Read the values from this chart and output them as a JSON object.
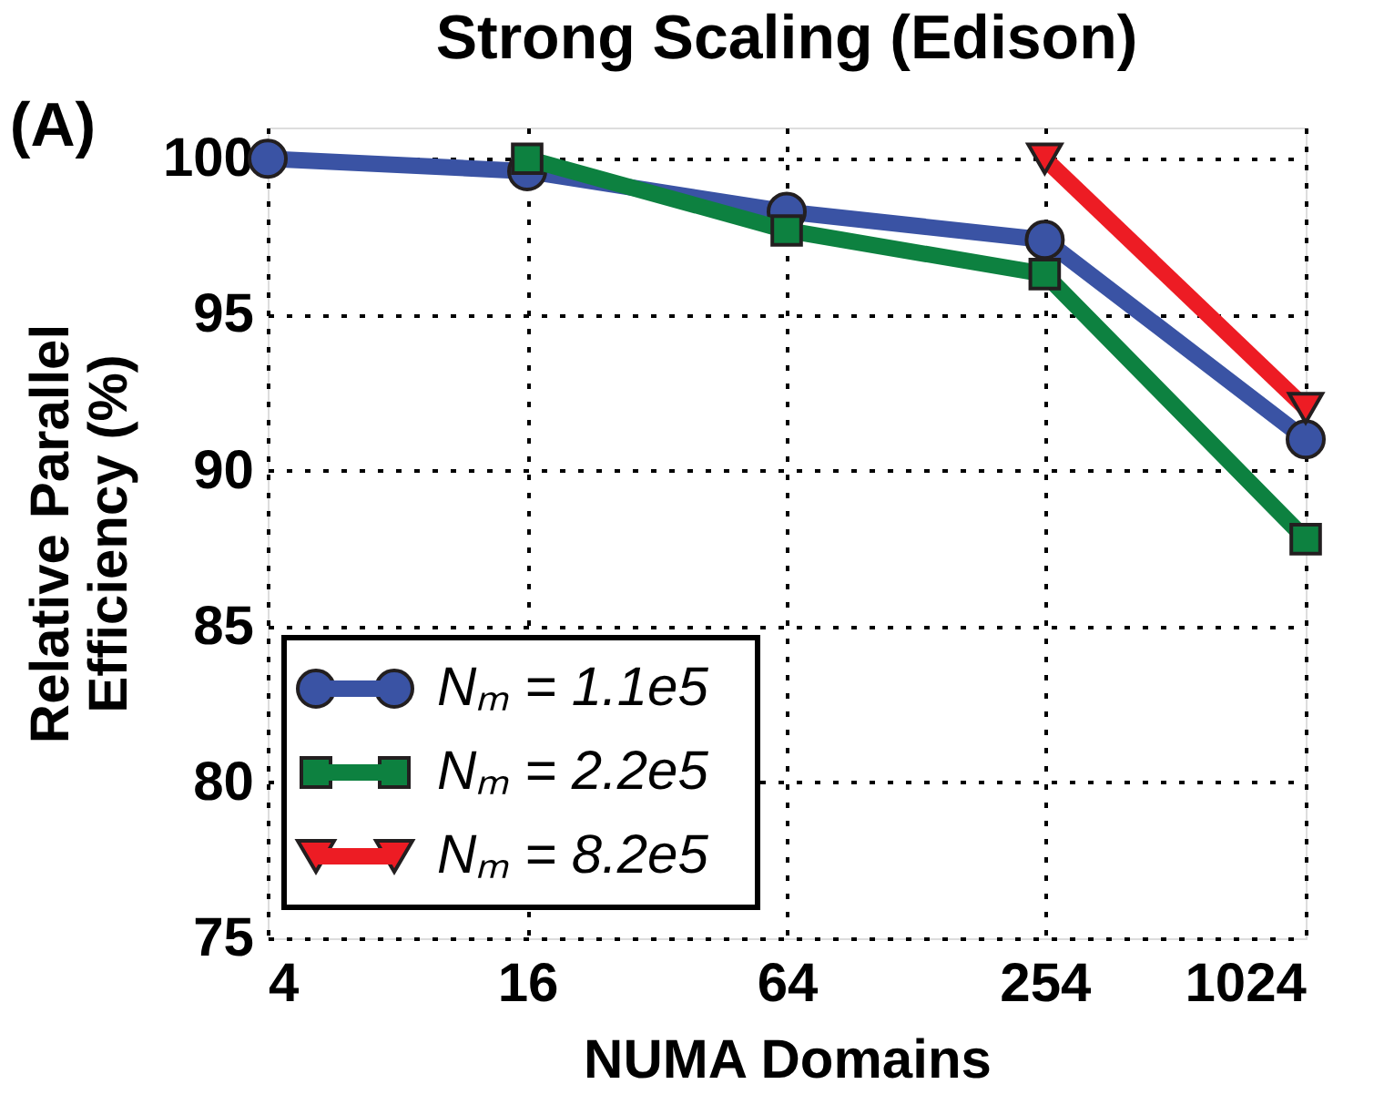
{
  "chart_data": {
    "type": "line",
    "title": "Strong Scaling (Edison)",
    "xlabel": "NUMA Domains",
    "ylabel": "Relative Parallel\nEfficiency (%)",
    "annotations": [
      "(A)"
    ],
    "x": [
      4,
      16,
      64,
      254,
      1024
    ],
    "xlim": [
      4,
      1024
    ],
    "xticks": [
      4,
      16,
      64,
      254,
      1024
    ],
    "ylim": [
      75,
      101
    ],
    "yticks": [
      75,
      80,
      85,
      90,
      95,
      100
    ],
    "log": "x",
    "grid": true,
    "legend": "bottom left",
    "line_style": "solid",
    "series": [
      {
        "name": "Nₘ = 1.1e5",
        "color": "#3a53a4",
        "marker": "circle",
        "values": [
          100,
          99.6,
          98.3,
          97.4,
          91.0
        ]
      },
      {
        "name": "Nₘ = 2.2e5",
        "color": "#0d8140",
        "marker": "square",
        "values": [
          null,
          100,
          97.7,
          96.3,
          87.8
        ]
      },
      {
        "name": "Nₘ = 8.2e5",
        "color": "#ed1c24",
        "marker": "triangle",
        "values": [
          null,
          null,
          null,
          100,
          92.0
        ]
      }
    ]
  }
}
